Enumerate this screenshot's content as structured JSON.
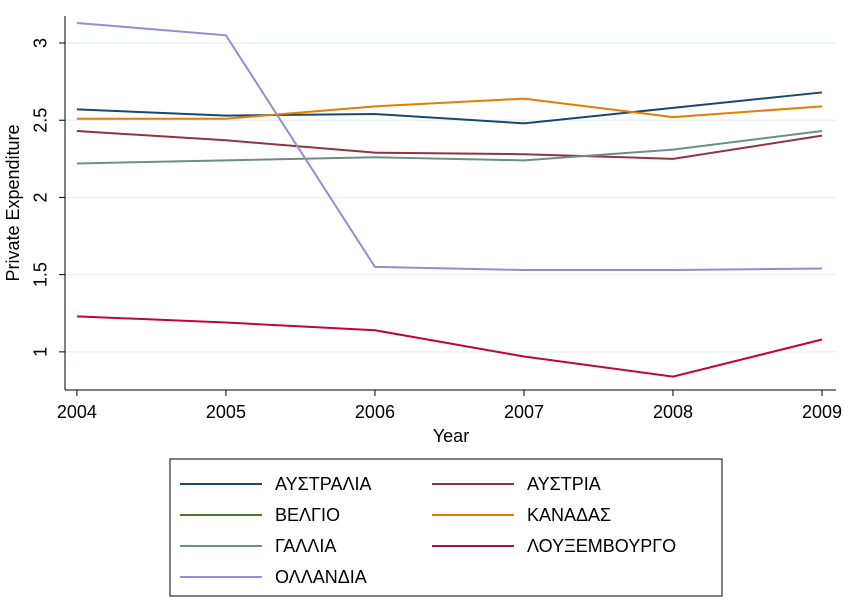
{
  "chart_data": {
    "type": "line",
    "x_label": "Year",
    "y_label": "Private Expenditure",
    "x": [
      2004,
      2005,
      2006,
      2007,
      2008,
      2009
    ],
    "xlim": [
      2003.92,
      2009.094
    ],
    "xticks": [
      2004,
      2005,
      2006,
      2007,
      2008,
      2009
    ],
    "ylim": [
      0.753,
      3.175
    ],
    "yticks": [
      1,
      1.5,
      2,
      2.5,
      3
    ],
    "grid": true,
    "series": [
      {
        "name": "ΑΥΣΤΡΑΛΙΑ",
        "color": "#1a476f",
        "values": [
          2.57,
          2.53,
          2.54,
          2.48,
          2.58,
          2.68
        ]
      },
      {
        "name": "ΑΥΣΤΡΙΑ",
        "color": "#90353b",
        "values": [
          2.43,
          2.37,
          2.29,
          2.28,
          2.25,
          2.4
        ]
      },
      {
        "name": "ΒΕΛΓΙΟ",
        "color": "#55752f",
        "values": [
          null,
          null,
          null,
          null,
          null,
          null
        ]
      },
      {
        "name": "ΚΑΝΑΔΑΣ",
        "color": "#e37e00",
        "values": [
          2.51,
          2.51,
          2.59,
          2.64,
          2.52,
          2.59
        ]
      },
      {
        "name": "ΓΑΛΛΙΑ",
        "color": "#6e8e84",
        "values": [
          2.22,
          2.24,
          2.26,
          2.24,
          2.31,
          2.43
        ]
      },
      {
        "name": "ΛΟΥΞΕΜΒΟΥΡΓΟ",
        "color": "#c10534",
        "values": [
          1.23,
          1.19,
          1.14,
          0.97,
          0.84,
          1.08
        ]
      },
      {
        "name": "ΟΛΛΑΝΔΙΑ",
        "color": "#938dd2",
        "values": [
          3.13,
          3.05,
          1.55,
          1.53,
          1.53,
          1.54
        ]
      }
    ]
  }
}
